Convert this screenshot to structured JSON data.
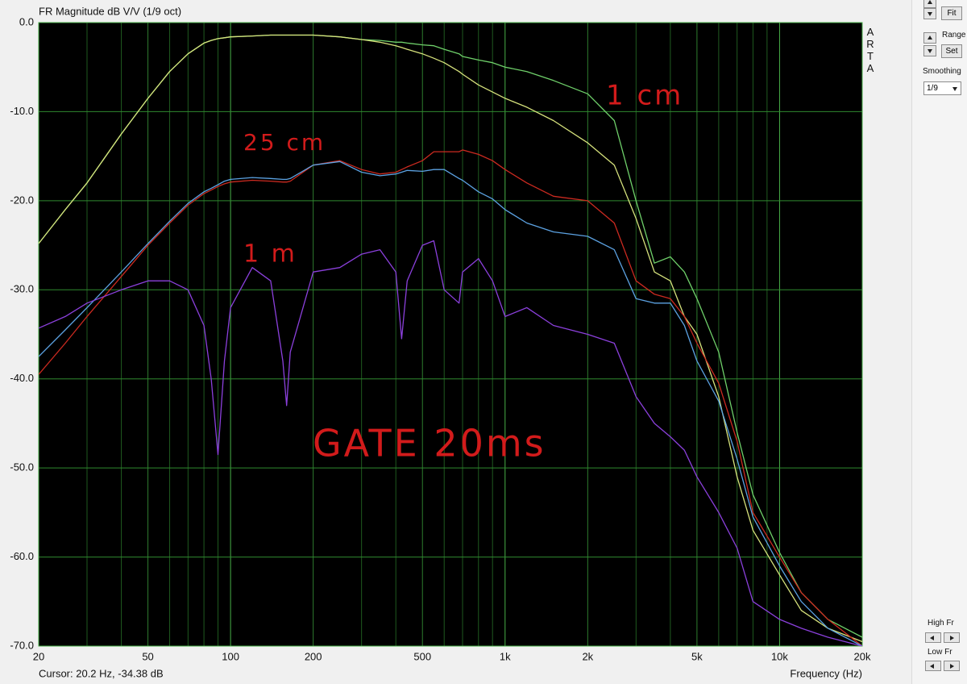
{
  "chart_data": {
    "type": "line",
    "title": "FR Magnitude dB V/V (1/9 oct)",
    "x_label": "Frequency (Hz)",
    "xscale": "log",
    "xlim": [
      20,
      20000
    ],
    "ylim": [
      -70,
      0
    ],
    "xticks": [
      20,
      50,
      100,
      200,
      500,
      {
        "value": 1000,
        "label": "1k"
      },
      {
        "value": 2000,
        "label": "2k"
      },
      {
        "value": 5000,
        "label": "5k"
      },
      {
        "value": 10000,
        "label": "10k"
      },
      {
        "value": 20000,
        "label": "20k"
      }
    ],
    "xminor": [
      30,
      40,
      60,
      70,
      80,
      90,
      300,
      400,
      600,
      700,
      800,
      900,
      3000,
      4000,
      6000,
      7000,
      8000,
      9000
    ],
    "yticks": [
      {
        "value": 0,
        "label": "0.0"
      },
      {
        "value": -10,
        "label": "-10.0"
      },
      {
        "value": -20,
        "label": "-20.0"
      },
      {
        "value": -30,
        "label": "-30.0"
      },
      {
        "value": -40,
        "label": "-40.0"
      },
      {
        "value": -50,
        "label": "-50.0"
      },
      {
        "value": -60,
        "label": "-60.0"
      },
      {
        "value": -70,
        "label": "-70.0"
      }
    ],
    "grid": true,
    "background": "#000000",
    "grid_color": "#1f5a1f",
    "x": [
      20,
      25,
      30,
      40,
      50,
      60,
      70,
      80,
      85,
      90,
      95,
      100,
      120,
      140,
      155,
      160,
      165,
      200,
      250,
      300,
      350,
      400,
      420,
      440,
      500,
      550,
      600,
      680,
      700,
      800,
      900,
      1000,
      1200,
      1500,
      2000,
      2500,
      3000,
      3500,
      4000,
      4500,
      5000,
      6000,
      7000,
      8000,
      10000,
      12000,
      15000,
      20000
    ],
    "series": [
      {
        "color": "#6fd06a",
        "values": [
          -24.8,
          -21,
          -18,
          -12.5,
          -8.5,
          -5.5,
          -3.5,
          -2.3,
          -2,
          -1.8,
          -1.7,
          -1.6,
          -1.5,
          -1.4,
          -1.4,
          -1.4,
          -1.4,
          -1.4,
          -1.6,
          -1.9,
          -2,
          -2.2,
          -2.2,
          -2.3,
          -2.5,
          -2.6,
          -3,
          -3.5,
          -3.8,
          -4.2,
          -4.5,
          -5,
          -5.5,
          -6.5,
          -8,
          -11,
          -20,
          -27,
          -26.3,
          -28,
          -31,
          -37,
          -46,
          -53,
          -59.5,
          -64,
          -67,
          -69
        ]
      },
      {
        "color": "#d6e27c",
        "values": [
          -24.8,
          -21,
          -18,
          -12.5,
          -8.5,
          -5.5,
          -3.5,
          -2.3,
          -2,
          -1.8,
          -1.7,
          -1.6,
          -1.5,
          -1.4,
          -1.4,
          -1.4,
          -1.4,
          -1.4,
          -1.6,
          -1.9,
          -2.2,
          -2.6,
          -2.8,
          -3,
          -3.5,
          -4,
          -4.5,
          -5.5,
          -5.8,
          -7,
          -7.8,
          -8.5,
          -9.5,
          -11,
          -13.5,
          -16,
          -22,
          -28,
          -29,
          -33,
          -35,
          -42,
          -51,
          -57,
          -62,
          -66,
          -68,
          -69.5
        ]
      },
      {
        "color": "#cc2a20",
        "values": [
          -39.5,
          -36,
          -33,
          -28.5,
          -25,
          -22.5,
          -20.5,
          -19.2,
          -18.8,
          -18.4,
          -18.1,
          -17.9,
          -17.7,
          -17.8,
          -17.9,
          -17.9,
          -17.8,
          -16,
          -15.5,
          -16.5,
          -17,
          -16.8,
          -16.5,
          -16.2,
          -15.5,
          -14.5,
          -14.5,
          -14.5,
          -14.3,
          -14.8,
          -15.5,
          -16.5,
          -18,
          -19.5,
          -20,
          -22.5,
          -29,
          -30.5,
          -31,
          -33,
          -36,
          -40.5,
          -47,
          -55,
          -60,
          -64,
          -67,
          -70
        ]
      },
      {
        "color": "#5ca2e2",
        "values": [
          -37.5,
          -34.5,
          -32,
          -28,
          -24.8,
          -22.3,
          -20.3,
          -19,
          -18.6,
          -18.2,
          -17.8,
          -17.6,
          -17.4,
          -17.5,
          -17.6,
          -17.6,
          -17.5,
          -16,
          -15.6,
          -16.8,
          -17.2,
          -17,
          -16.8,
          -16.6,
          -16.7,
          -16.5,
          -16.5,
          -17.5,
          -17.7,
          -19,
          -19.8,
          -21,
          -22.5,
          -23.5,
          -24,
          -25.5,
          -31,
          -31.5,
          -31.5,
          -34,
          -38,
          -42.5,
          -49,
          -55.5,
          -61,
          -65,
          -68,
          -70
        ]
      },
      {
        "color": "#8b40dc",
        "values": [
          -34.3,
          -33,
          -31.5,
          -30,
          -29,
          -29,
          -30,
          -34,
          -40,
          -48.5,
          -38,
          -32,
          -27.5,
          -29,
          -38,
          -43,
          -37,
          -28,
          -27.5,
          -26,
          -25.5,
          -28,
          -35.5,
          -29,
          -25,
          -24.5,
          -30,
          -31.5,
          -28,
          -26.5,
          -29,
          -33,
          -32,
          -34,
          -35,
          -36,
          -42,
          -45,
          -46.5,
          -48,
          -51,
          -55,
          -59,
          -65,
          -67,
          -68,
          -69,
          -70
        ]
      }
    ],
    "annotations": [
      "1 cm",
      "25 cm",
      "1 m",
      "GATE 20ms"
    ],
    "annotation_color": "#d21b1b"
  },
  "brand": "ARTA",
  "status": {
    "cursor": "Cursor: 20.2 Hz, -34.38 dB"
  },
  "controls": {
    "fit": "Fit",
    "range": "Range",
    "set": "Set",
    "smoothing": "Smoothing",
    "smoothing_value": "1/9",
    "high_fr": "High Fr",
    "low_fr": "Low Fr"
  }
}
